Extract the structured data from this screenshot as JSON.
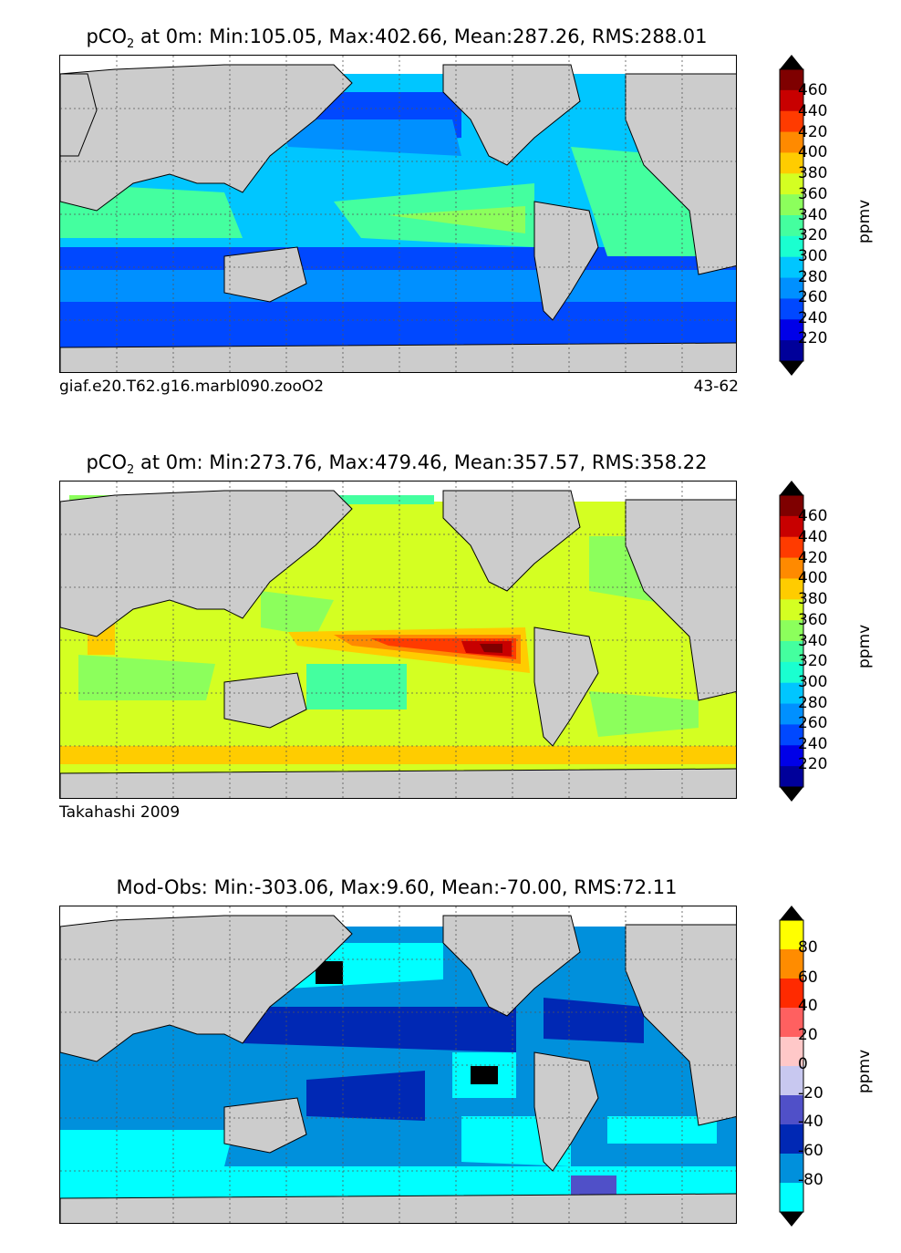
{
  "panels": [
    {
      "id": "model",
      "title_prefix": "pCO",
      "title_sub": "2",
      "title_suffix": " at 0m: Min:105.05, Max:402.66, Mean:287.26, RMS:288.01",
      "left_label": "giaf.e20.T62.g16.marbl090.zooO2",
      "right_label": "43-62",
      "unit": "ppmv",
      "colorbar_ticks": [
        "460",
        "440",
        "420",
        "400",
        "380",
        "360",
        "340",
        "320",
        "300",
        "280",
        "260",
        "240",
        "220"
      ],
      "colorbar_colors": [
        "#7f0000",
        "#c80000",
        "#ff3b00",
        "#ff8a00",
        "#ffcc00",
        "#d4ff22",
        "#8cff5c",
        "#44ff9f",
        "#1affd0",
        "#00c6ff",
        "#0090ff",
        "#0048ff",
        "#0000e8",
        "#00009a"
      ]
    },
    {
      "id": "obs",
      "title_prefix": "pCO",
      "title_sub": "2",
      "title_suffix": " at 0m: Min:273.76, Max:479.46, Mean:357.57, RMS:358.22",
      "left_label": "Takahashi 2009",
      "right_label": "",
      "unit": "ppmv",
      "colorbar_ticks": [
        "460",
        "440",
        "420",
        "400",
        "380",
        "360",
        "340",
        "320",
        "300",
        "280",
        "260",
        "240",
        "220"
      ],
      "colorbar_colors": [
        "#7f0000",
        "#c80000",
        "#ff3b00",
        "#ff8a00",
        "#ffcc00",
        "#d4ff22",
        "#8cff5c",
        "#44ff9f",
        "#1affd0",
        "#00c6ff",
        "#0090ff",
        "#0048ff",
        "#0000e8",
        "#00009a"
      ]
    },
    {
      "id": "diff",
      "title_prefix": "Mod-Obs: Min:-303.06, Max:9.60, Mean:-70.00, RMS:72.11",
      "title_sub": "",
      "title_suffix": "",
      "left_label": "",
      "right_label": "",
      "unit": "ppmv",
      "colorbar_ticks": [
        "80",
        "60",
        "40",
        "20",
        "0",
        "-20",
        "-40",
        "-60",
        "-80"
      ],
      "colorbar_colors": [
        "#ffff00",
        "#ff8c00",
        "#ff2a00",
        "#ff6060",
        "#ffc8c8",
        "#c8c8f0",
        "#5050c8",
        "#0028b4",
        "#0090dc",
        "#00ffff"
      ]
    }
  ],
  "map_style": {
    "land_color": "#cccccc",
    "missing_color": "#ffffff",
    "grid_style": "dotted"
  }
}
